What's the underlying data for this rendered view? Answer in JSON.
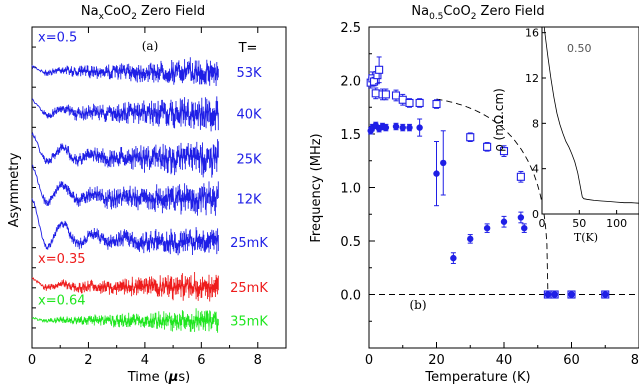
{
  "colors": {
    "blue": "#1f1fe6",
    "red": "#ee1c1c",
    "green": "#1fe61f",
    "black": "#000000"
  },
  "chart_data": [
    {
      "type": "line",
      "title_main": "Na",
      "title_sub": "x",
      "title_tail": "CoO",
      "title_sub2": "2",
      "title_end": " Zero Field",
      "panel_label": "(a)",
      "xlabel_pre": "Time (",
      "xlabel_mu": "μ",
      "xlabel_post": "s)",
      "ylabel": "Asymmetry",
      "xlim": [
        0,
        9
      ],
      "xticks": [
        0,
        2,
        4,
        6,
        8
      ],
      "xtick_labels": [
        "0",
        "2",
        "4",
        "6",
        "8"
      ],
      "temp_header": "T=",
      "series": [
        {
          "group": "x=0.5",
          "temp": "53K",
          "color": "blue",
          "baseline": 0.86,
          "amp": 0.02,
          "noise": 0.05
        },
        {
          "group": "x=0.5",
          "temp": "40K",
          "color": "blue",
          "baseline": 0.73,
          "amp": 0.05,
          "noise": 0.06
        },
        {
          "group": "x=0.5",
          "temp": "25K",
          "color": "blue",
          "baseline": 0.59,
          "amp": 0.09,
          "noise": 0.06
        },
        {
          "group": "x=0.5",
          "temp": "12K",
          "color": "blue",
          "baseline": 0.465,
          "amp": 0.12,
          "noise": 0.06
        },
        {
          "group": "x=0.5",
          "temp": "25mK",
          "color": "blue",
          "baseline": 0.33,
          "amp": 0.16,
          "noise": 0.05
        },
        {
          "group": "x=0.35",
          "temp": "25mK",
          "color": "red",
          "baseline": 0.19,
          "amp": 0.03,
          "noise": 0.05
        },
        {
          "group": "x=0.64",
          "temp": "35mK",
          "color": "green",
          "baseline": 0.085,
          "amp": 0.01,
          "noise": 0.04
        }
      ],
      "group_labels": [
        {
          "text": "x=0.5",
          "color": "blue",
          "y": 0.955
        },
        {
          "text": "x=0.35",
          "color": "red",
          "y": 0.265
        },
        {
          "text": "x=0.64",
          "color": "green",
          "y": 0.135
        }
      ]
    },
    {
      "type": "scatter",
      "title_main": "Na",
      "title_sub": "0.5",
      "title_tail": "CoO",
      "title_sub2": "2",
      "title_end": " Zero Field",
      "panel_label": "(b)",
      "xlabel": "Temperature (K)",
      "ylabel": "Frequency (MHz)",
      "xlim": [
        0,
        80
      ],
      "ylim": [
        -0.5,
        2.5
      ],
      "xticks": [
        0,
        20,
        40,
        60,
        80
      ],
      "xtick_labels": [
        "0",
        "20",
        "40",
        "60",
        "80"
      ],
      "yticks": [
        0.0,
        0.5,
        1.0,
        1.5,
        2.0,
        2.5
      ],
      "ytick_labels": [
        "0.0",
        "0.5",
        "1.0",
        "1.5",
        "2.0",
        "2.5"
      ],
      "series": [
        {
          "name": "open squares",
          "marker": "open-square",
          "x": [
            0.5,
            1,
            1.5,
            2,
            2.5,
            3,
            4,
            5,
            8,
            10,
            12,
            15,
            20,
            30,
            35,
            40,
            45,
            53,
            55,
            60,
            70
          ],
          "y": [
            1.98,
            2.02,
            1.99,
            1.88,
            2.05,
            2.1,
            1.87,
            1.87,
            1.86,
            1.82,
            1.79,
            1.79,
            1.78,
            1.47,
            1.38,
            1.34,
            1.1,
            0.0,
            0.0,
            0.0,
            0.0
          ],
          "yerr": [
            0.05,
            0.06,
            0.04,
            0.05,
            0.08,
            0.12,
            0.05,
            0.05,
            0.05,
            0.05,
            0.04,
            0.04,
            0.04,
            0.04,
            0.04,
            0.05,
            0.05,
            0.02,
            0.02,
            0.02,
            0.02
          ]
        },
        {
          "name": "filled circles",
          "marker": "filled-circle",
          "x": [
            0.5,
            1,
            2,
            3,
            4,
            5,
            8,
            10,
            12,
            15,
            20,
            22,
            25,
            30,
            35,
            40,
            45,
            46,
            53,
            55,
            60,
            70
          ],
          "y": [
            1.53,
            1.56,
            1.58,
            1.55,
            1.57,
            1.56,
            1.57,
            1.56,
            1.56,
            1.56,
            1.13,
            1.23,
            0.34,
            0.52,
            0.62,
            0.68,
            0.72,
            0.62,
            0.0,
            0.0,
            0.0,
            0.0
          ],
          "yerr": [
            0.03,
            0.03,
            0.03,
            0.03,
            0.03,
            0.03,
            0.03,
            0.03,
            0.03,
            0.08,
            0.3,
            0.3,
            0.05,
            0.04,
            0.04,
            0.05,
            0.05,
            0.04,
            0.02,
            0.02,
            0.02,
            0.02
          ]
        }
      ],
      "guide_curve": {
        "style": "dashed",
        "Tc": 53,
        "f0": 2.0
      }
    },
    {
      "type": "line",
      "inset": true,
      "label": "0.50",
      "xlabel": "T(K)",
      "ylabel": "ρ (mΩ.cm)",
      "xlim": [
        0,
        130
      ],
      "ylim": [
        0,
        16.5
      ],
      "xticks": [
        0,
        50,
        100
      ],
      "xtick_labels": [
        "0",
        "50",
        "100"
      ],
      "yticks": [
        0,
        4,
        8,
        12,
        16
      ],
      "ytick_labels": [
        "0",
        "4",
        "8",
        "12",
        "16"
      ],
      "x": [
        3,
        5,
        8,
        12,
        16,
        20,
        24,
        28,
        32,
        36,
        40,
        44,
        48,
        52,
        54,
        56,
        60,
        70,
        80,
        90,
        100,
        110,
        120,
        130
      ],
      "y": [
        16.5,
        15.4,
        13.8,
        11.9,
        10.3,
        8.9,
        7.9,
        7.1,
        6.4,
        5.9,
        5.3,
        4.6,
        3.6,
        2.2,
        1.5,
        1.35,
        1.3,
        1.2,
        1.15,
        1.1,
        1.05,
        1.0,
        1.0,
        0.95
      ]
    }
  ]
}
